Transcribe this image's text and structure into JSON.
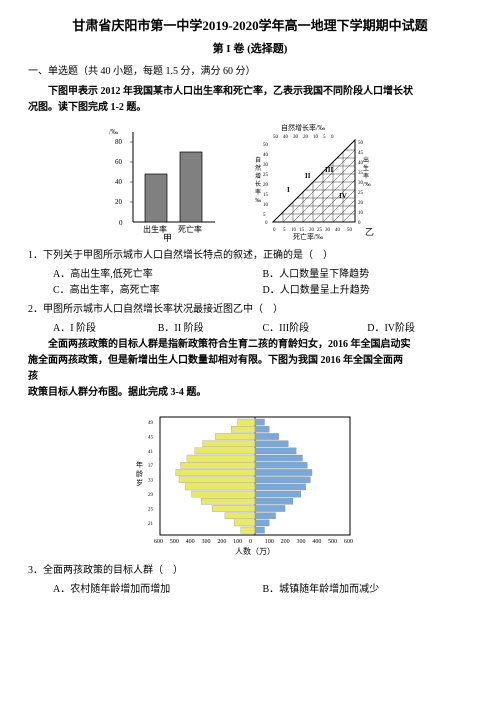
{
  "title": "甘肃省庆阳市第一中学2019-2020学年高一地理下学期期中试题",
  "subtitle": "第 I 卷 (选择题)",
  "section_head": "一、单选题（共 40 小题，每题 1.5 分，满分 60 分）",
  "intro1a": "下图甲表示 2012 年我国某市人口出生率和死亡率，乙表示我国不同阶段人口增长状",
  "intro1b": "况图。读下图完成 1-2 题。",
  "fig1": {
    "bar": {
      "bg": "#ffffff",
      "axis_color": "#000000",
      "bar_color": "#808080",
      "y_label": "/‰",
      "y_ticks": [
        "0",
        "20",
        "40",
        "60",
        "80"
      ],
      "bars": [
        {
          "label": "出生率",
          "value": 48
        },
        {
          "label": "死亡率",
          "value": 70
        }
      ],
      "caption": "甲"
    },
    "tri": {
      "bg": "#ffffff",
      "axis_color": "#000000",
      "line_color": "#000000",
      "ticks": [
        "0",
        "5",
        "10",
        "15",
        "20",
        "25",
        "30",
        "35",
        "40",
        "45",
        "50"
      ],
      "side_ticks": [
        "50",
        "45",
        "40",
        "35",
        "30",
        "25",
        "20",
        "15",
        "10",
        "5",
        "0"
      ],
      "top_label": "自然增长率/‰",
      "right_label": "出生率/‰",
      "bottom_label": "死亡率/‰",
      "left_label": "自然增长率/‰",
      "stages": [
        "I",
        "II",
        "III",
        "IV"
      ],
      "caption": "乙"
    }
  },
  "q1": {
    "stem": "1．下列关于甲图所示城市人口自然增长特点的叙述，正确的是（　）",
    "A": "A．高出生率,低死亡率",
    "B": "B．人口数量呈下降趋势",
    "C": "C．高出生率，高死亡率",
    "D": "D．人口数量呈上升趋势"
  },
  "q2": {
    "stem": "2．甲图所示城市人口自然增长率状况最接近图乙中（　）",
    "A": "A．I 阶段",
    "B": "B．II 阶段",
    "C": "C．III阶段",
    "D": "D．IV阶段"
  },
  "intro2a": "全面两孩政策的目标人群是指新政策符合生育二孩的育龄妇女，2016 年全国启动实",
  "intro2b": "施全面两孩政策，但是新增出生人口数量却相对有限。下图为我国 2016 年全国全面两",
  "intro2c": "孩",
  "intro2d": "政策目标人群分布图。据此完成 3-4 题。",
  "pyramid": {
    "bg": "#ffffff",
    "axis_color": "#000000",
    "rural_color": "#e8e86a",
    "urban_color": "#7aa8d8",
    "y_label": "年龄/岁",
    "x_label": "人数（万）",
    "x_ticks": [
      "600",
      "500",
      "400",
      "300",
      "200",
      "100",
      "0",
      "100",
      "200",
      "300",
      "400",
      "500",
      "600"
    ],
    "ages": [
      "49",
      "47",
      "45",
      "43",
      "41",
      "39",
      "37",
      "35",
      "33",
      "31",
      "29",
      "27",
      "25",
      "23",
      "21",
      "20"
    ],
    "left_series": [
      110,
      150,
      250,
      330,
      380,
      430,
      470,
      500,
      480,
      440,
      400,
      340,
      270,
      190,
      130,
      90
    ],
    "right_series": [
      60,
      90,
      150,
      210,
      260,
      300,
      330,
      360,
      350,
      320,
      290,
      240,
      190,
      130,
      90,
      60
    ],
    "legend": {
      "left": "农村",
      "right": "城镇"
    }
  },
  "q3": {
    "stem": "3．全面两孩政策的目标人群（　）",
    "A": "A．农村随年龄增加而增加",
    "B": "B．城镇随年龄增加而减少"
  },
  "colors": {
    "text": "#000000",
    "bg": "#ffffff"
  }
}
